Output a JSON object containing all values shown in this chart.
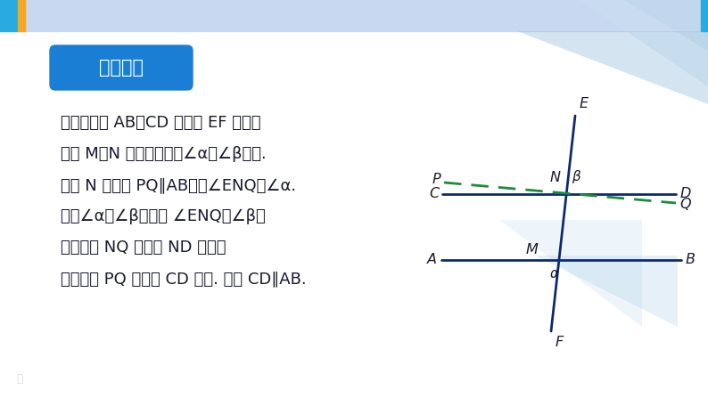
{
  "bg_color": "#ffffff",
  "header_color": "#c8d8f0",
  "header_bg": "#dce8f8",
  "left_bar_color": "#29abe2",
  "gold_bar_color": "#f5a623",
  "right_bar_color": "#29abe2",
  "title_badge_facecolor": "#1a7fd4",
  "title_badge_edgecolor": "#1a7fd4",
  "title_text": "证明结论",
  "title_text_color": "#ffffff",
  "body_lines": [
    "如图，直线 AB，CD 被直线 EF 所截，",
    "交于 M，N 两点，同位角∠α与∠β相等.",
    "过点 N 作直线 PQ∥AB，则∠ENQ＝∠α.",
    "由于∠α＝∠β，因此 ∠ENQ＝∠β，",
    "从而射线 NQ 与射线 ND 重合，",
    "于是直线 PQ 与直线 CD 重合. 因此 CD∥AB."
  ],
  "body_color": "#1a1a2e",
  "line_color_dark": "#0d2a6e",
  "dashed_color": "#1a8c3a",
  "label_color": "#1a1a2e",
  "deco_tri_color1": "#b8d4ea",
  "deco_tri_color2": "#cce0f0",
  "deco_tri_color3": "#a0c4e0",
  "watermark_color": "#aaaaaa"
}
